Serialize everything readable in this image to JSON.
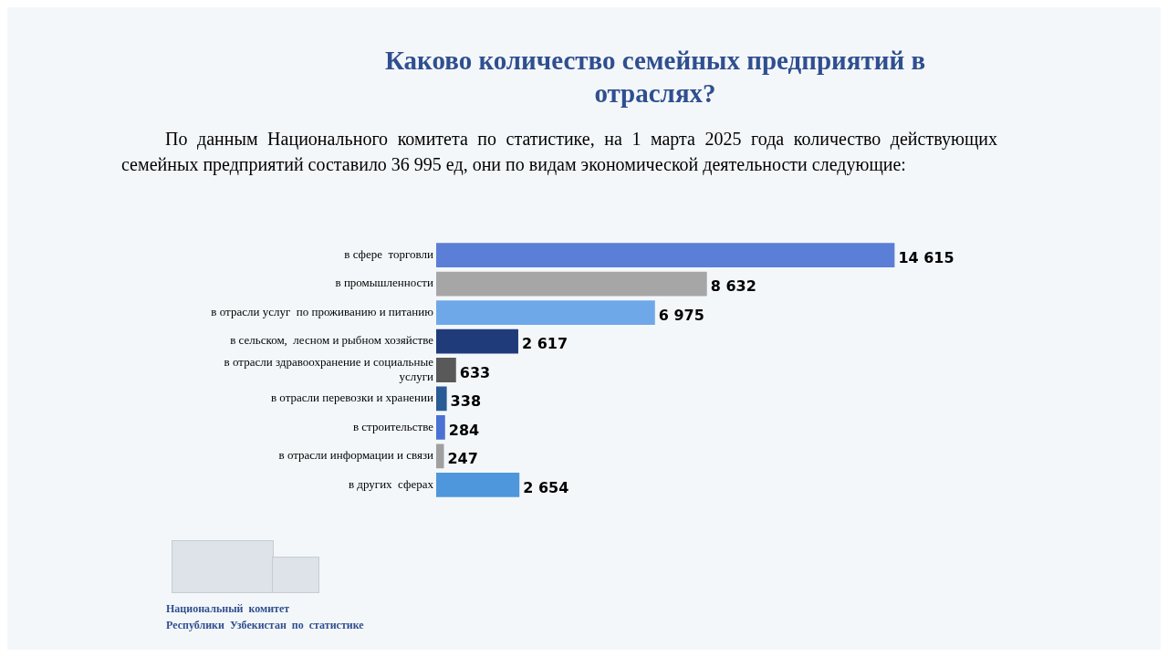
{
  "chart_data": {
    "type": "bar",
    "orientation": "horizontal",
    "title": "Каково количество семейных предприятий в отраслях?",
    "subtitle": "По данным Национального комитета по статистике, на 1 марта 2025 года количество действующих семейных предприятий составило 36 995 ед, они по видам экономической деятельности следующие:",
    "categories": [
      "в сфере  торговли",
      "в промышленности",
      "в отрасли услуг  по проживанию и питанию",
      "в сельском,  лесном и рыбном хозяйстве",
      "в отрасли здравоохранение и социальные услуги",
      "в отрасли перевозки и хранении",
      "в строительстве",
      "в отрасли информации и связи",
      "в других  сферах"
    ],
    "values": [
      14615,
      8632,
      6975,
      2617,
      633,
      338,
      284,
      247,
      2654
    ],
    "value_labels": [
      "14 615",
      "8 632",
      "6 975",
      "2 617",
      "633",
      "338",
      "284",
      "247",
      "2 654"
    ],
    "colors": [
      "#5b7fd6",
      "#a6a6a6",
      "#6fa8e8",
      "#1f3b7a",
      "#595959",
      "#2b5b95",
      "#4a72d4",
      "#a0a0a0",
      "#4f97dc"
    ],
    "tick_labels": "y",
    "legend": false,
    "annotations": [
      "Национальный  комитет",
      "Республики  Узбекистан  по  статистике"
    ]
  }
}
